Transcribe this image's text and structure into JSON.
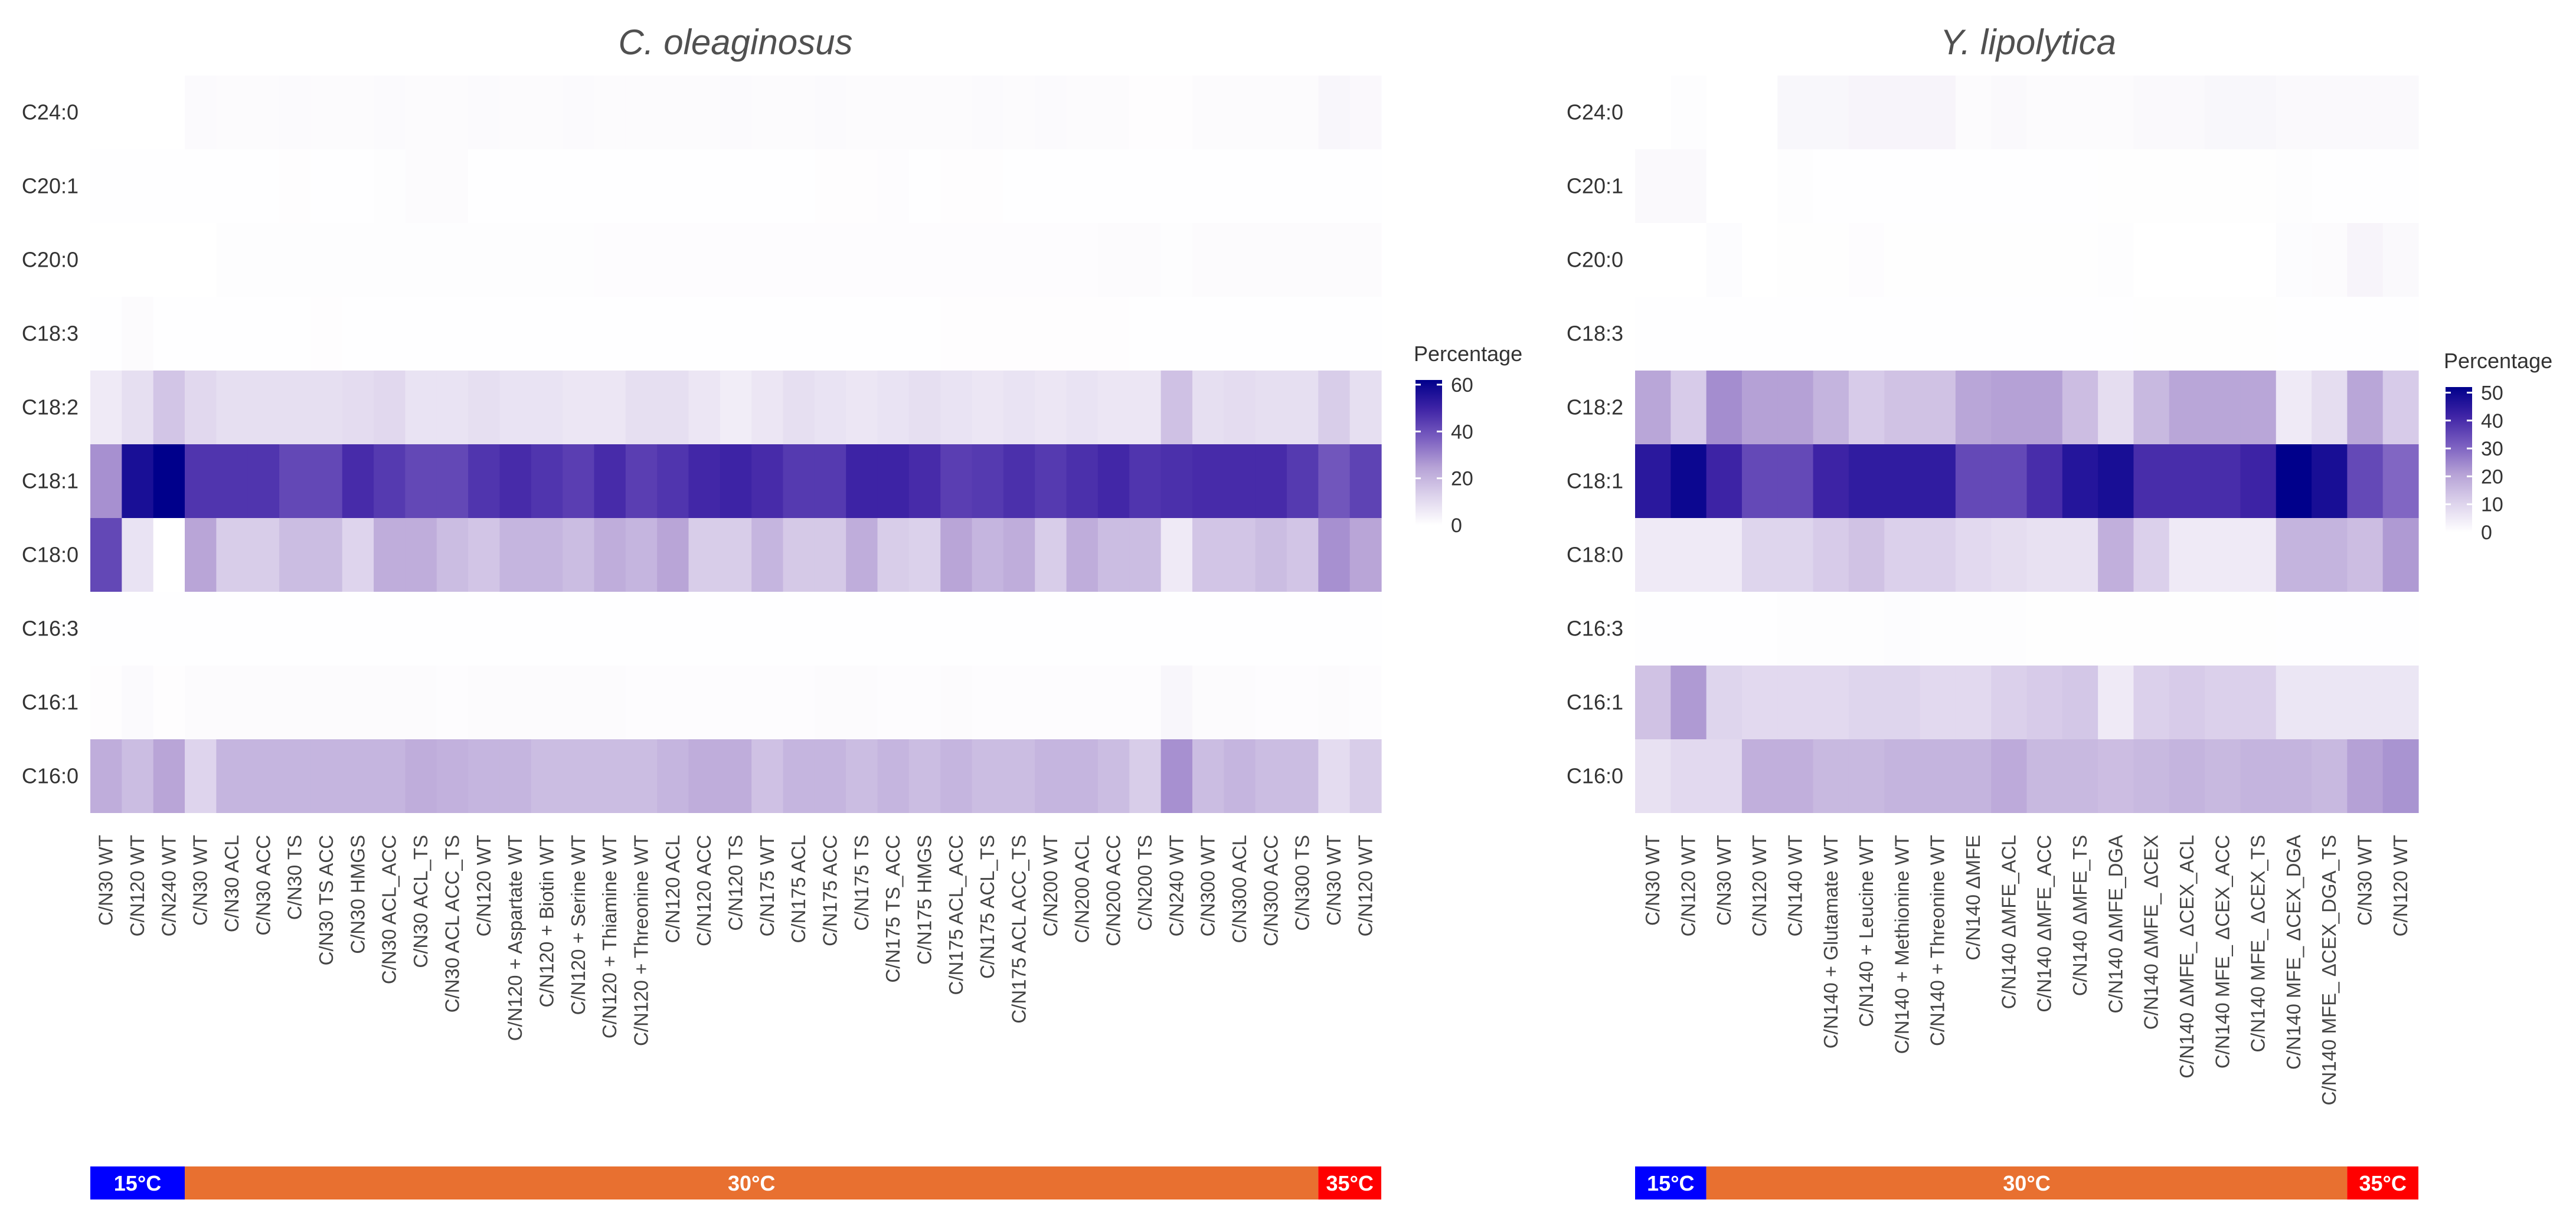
{
  "chart_data": [
    {
      "type": "heatmap",
      "title": "C. oleaginosus",
      "legend_title": "Percentage",
      "legend_ticks": [
        0,
        20,
        40,
        60
      ],
      "color_range": [
        0,
        62
      ],
      "colors": {
        "low": "#ffffff",
        "high": "#00008b"
      },
      "rows": [
        "C24:0",
        "C20:1",
        "C20:0",
        "C18:3",
        "C18:2",
        "C18:1",
        "C18:0",
        "C16:3",
        "C16:1",
        "C16:0"
      ],
      "columns": [
        "C/N30 WT",
        "C/N120 WT",
        "C/N240 WT",
        "C/N30 WT",
        "C/N30 ACL",
        "C/N30 ACC",
        "C/N30 TS",
        "C/N30 TS ACC",
        "C/N30 HMGS",
        "C/N30 ACL_ACC",
        "C/N30 ACL_TS",
        "C/N30 ACL ACC_TS",
        "C/N120 WT",
        "C/N120 + Aspartate WT",
        "C/N120 + Biotin WT",
        "C/N120 + Serine WT",
        "C/N120 + Thiamine WT",
        "C/N120 + Threonine WT",
        "C/N120 ACL",
        "C/N120 ACC",
        "C/N120 TS",
        "C/N175 WT",
        "C/N175 ACL",
        "C/N175 ACC",
        "C/N175 TS",
        "C/N175 TS_ACC",
        "C/N175 HMGS",
        "C/N175 ACL_ACC",
        "C/N175 ACL_TS",
        "C/N175 ACL ACC_TS",
        "C/N200 WT",
        "C/N200 ACL",
        "C/N200 ACC",
        "C/N200 TS",
        "C/N240 WT",
        "C/N300 WT",
        "C/N300 ACL",
        "C/N300 ACC",
        "C/N300 TS",
        "C/N30 WT",
        "C/N120 WT"
      ],
      "values": [
        [
          0,
          0,
          0,
          1.5,
          1,
          1,
          1.5,
          1,
          1,
          1.5,
          1,
          1,
          1.5,
          1,
          1,
          1.5,
          1,
          1,
          1,
          1,
          1.5,
          1,
          1,
          1.5,
          1,
          1,
          1,
          1,
          1.5,
          1,
          1.5,
          1,
          1,
          0.5,
          0.5,
          1,
          1,
          1,
          1,
          2.5,
          2
        ],
        [
          0.2,
          0.2,
          0.2,
          0.3,
          0.3,
          0.3,
          0.5,
          0.3,
          0.3,
          0.6,
          1,
          1,
          0.3,
          0.3,
          0.3,
          0.3,
          0.3,
          0.3,
          0.3,
          0.3,
          0.3,
          0.3,
          0.3,
          0.5,
          0.5,
          0.8,
          0.2,
          0.5,
          0.5,
          0.3,
          0.3,
          0.3,
          0.3,
          0.3,
          0.3,
          0.3,
          0.3,
          0.3,
          0.3,
          0.3,
          0.3
        ],
        [
          0,
          0,
          0,
          0,
          0.6,
          0.6,
          0.7,
          0.7,
          0.7,
          0.7,
          0.7,
          0.7,
          0.7,
          0.7,
          0.7,
          0.7,
          0.8,
          0.8,
          0.8,
          0.8,
          0.8,
          0.8,
          0.8,
          0.8,
          0.8,
          0.8,
          0.8,
          0.8,
          0.8,
          0.8,
          0.8,
          0.8,
          1,
          1,
          0.6,
          1,
          1,
          1,
          1,
          1.2,
          1
        ],
        [
          0.2,
          1,
          0.3,
          0.3,
          0.3,
          0.3,
          0.3,
          0.5,
          0.3,
          0.3,
          0.3,
          0.3,
          0.3,
          0.3,
          0.3,
          0.3,
          0.3,
          0.3,
          0.3,
          0.3,
          0.3,
          0.3,
          0.3,
          0.3,
          0.3,
          0.3,
          0.3,
          0.5,
          0.5,
          0.5,
          0.5,
          0.5,
          0.5,
          0.3,
          0.3,
          0.3,
          0.3,
          0.3,
          0.3,
          0.3,
          0.3
        ],
        [
          6,
          9,
          16,
          11,
          9,
          9,
          9,
          9,
          10,
          11,
          8,
          8,
          9,
          8,
          8,
          7,
          7,
          9,
          9,
          7,
          5,
          7,
          9,
          8,
          7,
          8,
          9,
          8,
          7,
          8,
          7,
          8,
          7,
          7,
          17,
          9,
          10,
          9,
          9,
          14,
          9
        ],
        [
          28,
          57,
          62,
          46,
          46,
          46,
          42,
          42,
          48,
          45,
          42,
          42,
          46,
          48,
          46,
          44,
          48,
          44,
          46,
          49,
          50,
          48,
          45,
          45,
          50,
          50,
          48,
          44,
          45,
          47,
          45,
          47,
          49,
          46,
          47,
          48,
          48,
          48,
          45,
          39,
          43
        ],
        [
          42,
          8,
          0,
          24,
          14,
          14,
          18,
          18,
          12,
          22,
          22,
          18,
          16,
          20,
          20,
          18,
          22,
          20,
          24,
          14,
          14,
          20,
          15,
          15,
          22,
          14,
          13,
          24,
          20,
          22,
          14,
          22,
          18,
          18,
          6,
          16,
          16,
          18,
          16,
          28,
          24
        ],
        [
          0.2,
          0.2,
          0.2,
          0.2,
          0.2,
          0.2,
          0.2,
          0.2,
          0.2,
          0.2,
          0.2,
          0.2,
          0.2,
          0.2,
          0.2,
          0.2,
          0.2,
          0.2,
          0.2,
          0.2,
          0.2,
          0.2,
          0.2,
          0.2,
          0.2,
          0.2,
          0.2,
          0.2,
          0.2,
          0.2,
          0.2,
          0.2,
          0.2,
          0.2,
          0.2,
          0.2,
          0.2,
          0.2,
          0.2,
          0.2,
          0.2
        ],
        [
          0.5,
          1.5,
          0.5,
          1,
          1,
          1,
          1,
          1,
          1,
          1,
          1,
          0.8,
          1,
          1,
          1,
          1,
          1,
          0.8,
          0.8,
          0.8,
          0.8,
          0.8,
          0.8,
          1,
          1,
          0.8,
          0.8,
          1,
          0.8,
          0.8,
          0.8,
          0.8,
          0.8,
          0.8,
          2.5,
          1,
          1,
          0.8,
          0.8,
          1,
          0.8
        ],
        [
          22,
          18,
          24,
          12,
          20,
          20,
          20,
          20,
          20,
          20,
          22,
          21,
          20,
          20,
          18,
          18,
          18,
          18,
          20,
          22,
          22,
          17,
          20,
          20,
          18,
          20,
          18,
          20,
          18,
          18,
          20,
          20,
          18,
          14,
          28,
          18,
          20,
          18,
          18,
          10,
          14
        ]
      ],
      "temperature_groups": [
        {
          "label": "15°C",
          "columns": 3,
          "color": "#0000ff"
        },
        {
          "label": "30°C",
          "columns": 36,
          "color": "#e87030"
        },
        {
          "label": "35°C",
          "columns": 2,
          "color": "#ff0000"
        }
      ]
    },
    {
      "type": "heatmap",
      "title": "Y. lipolytica",
      "legend_title": "Percentage",
      "legend_ticks": [
        0,
        10,
        20,
        30,
        40,
        50
      ],
      "color_range": [
        0,
        52
      ],
      "colors": {
        "low": "#ffffff",
        "high": "#00008b"
      },
      "rows": [
        "C24:0",
        "C20:1",
        "C20:0",
        "C18:3",
        "C18:2",
        "C18:1",
        "C18:0",
        "C16:3",
        "C16:1",
        "C16:0"
      ],
      "columns": [
        "C/N30 WT",
        "C/N120 WT",
        "C/N30 WT",
        "C/N120 WT",
        "C/N140 WT",
        "C/N140 + Glutamate WT",
        "C/N140 + Leucine WT",
        "C/N140 + Methionine WT",
        "C/N140 + Threonine WT",
        "C/N140  ΔMFE",
        "C/N140 ΔMFE_ACL",
        "C/N140 ΔMFE_ACC",
        "C/N140 ΔMFE_TS",
        "C/N140 ΔMFE_DGA",
        "C/N140 ΔMFE_ ΔCEX",
        "C/N140 ΔMFE_ ΔCEX_ACL",
        "C/N140 MFE_ ΔCEX_ACC",
        "C/N140 MFE_ ΔCEX_TS",
        "C/N140 MFE_ ΔCEX_DGA",
        "C/N140 MFE_ ΔCEX_DGA_TS",
        "C/N30  WT",
        "C/N120  WT"
      ],
      "values": [
        [
          0,
          0.5,
          0,
          0,
          2,
          2,
          2.5,
          2.5,
          2.5,
          1,
          1.5,
          1,
          1,
          1,
          1.5,
          1.5,
          2,
          2,
          1.5,
          1.5,
          1.5,
          1.5
        ],
        [
          1.5,
          1.5,
          0,
          0,
          0.5,
          0.2,
          0.2,
          0.2,
          0.2,
          0.2,
          0.2,
          0.2,
          0.2,
          0.3,
          0.3,
          0.3,
          0.3,
          0.3,
          0.5,
          0.2,
          0.2,
          0.2
        ],
        [
          0,
          0,
          0.8,
          0,
          0.3,
          0.3,
          0.6,
          0.3,
          0.3,
          0.3,
          0.3,
          0.3,
          0.3,
          0.5,
          0,
          0,
          0,
          0,
          0.8,
          1,
          2.5,
          1.5
        ],
        [
          0.2,
          0.2,
          0.2,
          0.2,
          0.2,
          0.2,
          0.2,
          0.2,
          0.2,
          0.2,
          0.2,
          0.2,
          0.2,
          0.2,
          0.3,
          0.3,
          0.3,
          0.3,
          0.2,
          0.2,
          0.2,
          0.2
        ],
        [
          20,
          12,
          24,
          21,
          21,
          17,
          12,
          14,
          14,
          20,
          21,
          21,
          15,
          8,
          16,
          20,
          20,
          20,
          5,
          8,
          20,
          12
        ],
        [
          45,
          50,
          42,
          35,
          35,
          42,
          44,
          44,
          44,
          35,
          35,
          40,
          46,
          48,
          40,
          40,
          40,
          42,
          52,
          48,
          35,
          30
        ],
        [
          5,
          5,
          5,
          10,
          10,
          12,
          14,
          11,
          11,
          9,
          8,
          7,
          7,
          18,
          11,
          5,
          5,
          5,
          17,
          17,
          15,
          22
        ],
        [
          0.2,
          0.2,
          0.2,
          0.2,
          0.5,
          0.5,
          0.5,
          0.8,
          0.5,
          0.5,
          0.5,
          0.3,
          0.3,
          0.3,
          0.3,
          0.3,
          0.3,
          0.3,
          0.2,
          0.2,
          0.2,
          0.2
        ],
        [
          14,
          22,
          10,
          9,
          9,
          9,
          10,
          10,
          9,
          9,
          11,
          12,
          13,
          5,
          11,
          12,
          11,
          11,
          6,
          6,
          6,
          6
        ],
        [
          7,
          9,
          9,
          18,
          18,
          16,
          16,
          17,
          17,
          17,
          19,
          16,
          16,
          15,
          16,
          17,
          16,
          17,
          17,
          16,
          21,
          23
        ]
      ],
      "temperature_groups": [
        {
          "label": "15°C",
          "columns": 2,
          "color": "#0000ff"
        },
        {
          "label": "30°C",
          "columns": 18,
          "color": "#e87030"
        },
        {
          "label": "35°C",
          "columns": 2,
          "color": "#ff0000"
        }
      ]
    }
  ]
}
